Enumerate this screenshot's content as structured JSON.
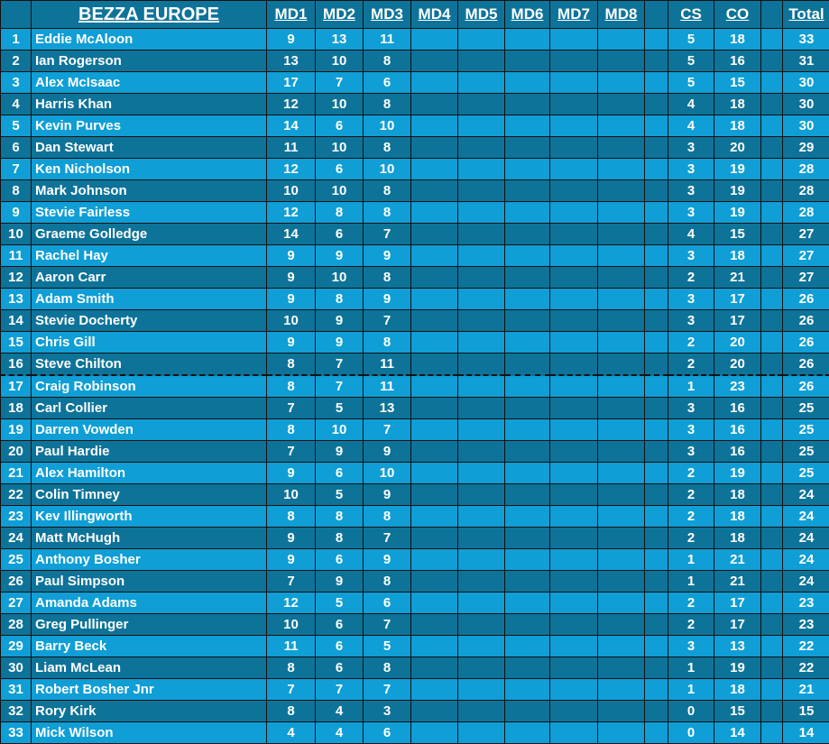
{
  "title": "BEZZA EUROPE",
  "columns": [
    "MD1",
    "MD2",
    "MD3",
    "MD4",
    "MD5",
    "MD6",
    "MD7",
    "MD8",
    "",
    "CS",
    "CO",
    "",
    "Total"
  ],
  "colors": {
    "row_light": "#0f9ed5",
    "row_dark": "#0e7399",
    "text": "#ffffff"
  },
  "cutoff_after_rank": 16,
  "rows": [
    {
      "rank": "1",
      "name": "Eddie McAloon",
      "md": [
        "9",
        "13",
        "11"
      ],
      "cs": "5",
      "co": "18",
      "total": "33"
    },
    {
      "rank": "2",
      "name": "Ian Rogerson",
      "md": [
        "13",
        "10",
        "8"
      ],
      "cs": "5",
      "co": "16",
      "total": "31"
    },
    {
      "rank": "3",
      "name": "Alex McIsaac",
      "md": [
        "17",
        "7",
        "6"
      ],
      "cs": "5",
      "co": "15",
      "total": "30"
    },
    {
      "rank": "4",
      "name": "Harris Khan",
      "md": [
        "12",
        "10",
        "8"
      ],
      "cs": "4",
      "co": "18",
      "total": "30"
    },
    {
      "rank": "5",
      "name": "Kevin Purves",
      "md": [
        "14",
        "6",
        "10"
      ],
      "cs": "4",
      "co": "18",
      "total": "30"
    },
    {
      "rank": "6",
      "name": "Dan Stewart",
      "md": [
        "11",
        "10",
        "8"
      ],
      "cs": "3",
      "co": "20",
      "total": "29"
    },
    {
      "rank": "7",
      "name": "Ken Nicholson",
      "md": [
        "12",
        "6",
        "10"
      ],
      "cs": "3",
      "co": "19",
      "total": "28"
    },
    {
      "rank": "8",
      "name": "Mark Johnson",
      "md": [
        "10",
        "10",
        "8"
      ],
      "cs": "3",
      "co": "19",
      "total": "28"
    },
    {
      "rank": "9",
      "name": "Stevie Fairless",
      "md": [
        "12",
        "8",
        "8"
      ],
      "cs": "3",
      "co": "19",
      "total": "28"
    },
    {
      "rank": "10",
      "name": "Graeme Golledge",
      "md": [
        "14",
        "6",
        "7"
      ],
      "cs": "4",
      "co": "15",
      "total": "27"
    },
    {
      "rank": "11",
      "name": "Rachel Hay",
      "md": [
        "9",
        "9",
        "9"
      ],
      "cs": "3",
      "co": "18",
      "total": "27"
    },
    {
      "rank": "12",
      "name": "Aaron Carr",
      "md": [
        "9",
        "10",
        "8"
      ],
      "cs": "2",
      "co": "21",
      "total": "27"
    },
    {
      "rank": "13",
      "name": "Adam Smith",
      "md": [
        "9",
        "8",
        "9"
      ],
      "cs": "3",
      "co": "17",
      "total": "26"
    },
    {
      "rank": "14",
      "name": "Stevie Docherty",
      "md": [
        "10",
        "9",
        "7"
      ],
      "cs": "3",
      "co": "17",
      "total": "26"
    },
    {
      "rank": "15",
      "name": "Chris Gill",
      "md": [
        "9",
        "9",
        "8"
      ],
      "cs": "2",
      "co": "20",
      "total": "26"
    },
    {
      "rank": "16",
      "name": "Steve Chilton",
      "md": [
        "8",
        "7",
        "11"
      ],
      "cs": "2",
      "co": "20",
      "total": "26"
    },
    {
      "rank": "17",
      "name": "Craig Robinson",
      "md": [
        "8",
        "7",
        "11"
      ],
      "cs": "1",
      "co": "23",
      "total": "26"
    },
    {
      "rank": "18",
      "name": "Carl Collier",
      "md": [
        "7",
        "5",
        "13"
      ],
      "cs": "3",
      "co": "16",
      "total": "25"
    },
    {
      "rank": "19",
      "name": "Darren Vowden",
      "md": [
        "8",
        "10",
        "7"
      ],
      "cs": "3",
      "co": "16",
      "total": "25"
    },
    {
      "rank": "20",
      "name": "Paul Hardie",
      "md": [
        "7",
        "9",
        "9"
      ],
      "cs": "3",
      "co": "16",
      "total": "25"
    },
    {
      "rank": "21",
      "name": "Alex Hamilton",
      "md": [
        "9",
        "6",
        "10"
      ],
      "cs": "2",
      "co": "19",
      "total": "25"
    },
    {
      "rank": "22",
      "name": "Colin Timney",
      "md": [
        "10",
        "5",
        "9"
      ],
      "cs": "2",
      "co": "18",
      "total": "24"
    },
    {
      "rank": "23",
      "name": "Kev Illingworth",
      "md": [
        "8",
        "8",
        "8"
      ],
      "cs": "2",
      "co": "18",
      "total": "24"
    },
    {
      "rank": "24",
      "name": "Matt McHugh",
      "md": [
        "9",
        "8",
        "7"
      ],
      "cs": "2",
      "co": "18",
      "total": "24"
    },
    {
      "rank": "25",
      "name": "Anthony Bosher",
      "md": [
        "9",
        "6",
        "9"
      ],
      "cs": "1",
      "co": "21",
      "total": "24"
    },
    {
      "rank": "26",
      "name": "Paul Simpson",
      "md": [
        "7",
        "9",
        "8"
      ],
      "cs": "1",
      "co": "21",
      "total": "24"
    },
    {
      "rank": "27",
      "name": "Amanda Adams",
      "md": [
        "12",
        "5",
        "6"
      ],
      "cs": "2",
      "co": "17",
      "total": "23"
    },
    {
      "rank": "28",
      "name": "Greg Pullinger",
      "md": [
        "10",
        "6",
        "7"
      ],
      "cs": "2",
      "co": "17",
      "total": "23"
    },
    {
      "rank": "29",
      "name": "Barry Beck",
      "md": [
        "11",
        "6",
        "5"
      ],
      "cs": "3",
      "co": "13",
      "total": "22"
    },
    {
      "rank": "30",
      "name": "Liam McLean",
      "md": [
        "8",
        "6",
        "8"
      ],
      "cs": "1",
      "co": "19",
      "total": "22"
    },
    {
      "rank": "31",
      "name": "Robert Bosher Jnr",
      "md": [
        "7",
        "7",
        "7"
      ],
      "cs": "1",
      "co": "18",
      "total": "21"
    },
    {
      "rank": "32",
      "name": "Rory Kirk",
      "md": [
        "8",
        "4",
        "3"
      ],
      "cs": "0",
      "co": "15",
      "total": "15"
    },
    {
      "rank": "33",
      "name": "Mick Wilson",
      "md": [
        "4",
        "4",
        "6"
      ],
      "cs": "0",
      "co": "14",
      "total": "14"
    }
  ]
}
